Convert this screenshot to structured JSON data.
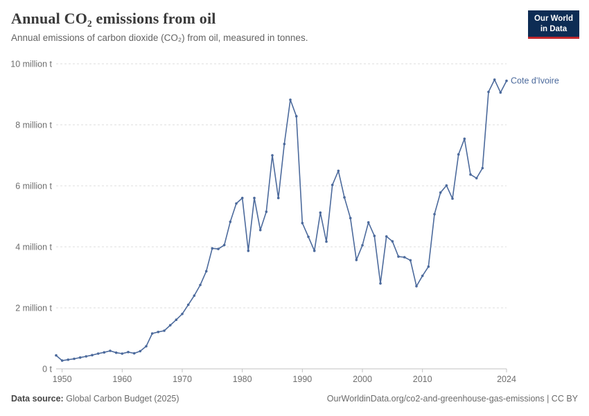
{
  "header": {
    "title": "Annual CO₂ emissions from oil",
    "subtitle": "Annual emissions of carbon dioxide (CO₂) from oil, measured in tonnes."
  },
  "logo": {
    "line1": "Our World",
    "line2": "in Data",
    "bg_color": "#0d2c54",
    "accent_color": "#c0272d"
  },
  "chart_data": {
    "type": "line",
    "title": "Annual CO₂ emissions from oil",
    "unit": "tonnes",
    "entity_label": "Cote d'Ivoire",
    "line_color": "#4C6A9C",
    "grid_color": "#dcdcdc",
    "axis_color": "#c2c2c2",
    "tick_text_color": "#6e6e6e",
    "grid": "horizontal-dashed",
    "legend_position": "end-of-line-label",
    "xlim": [
      1949,
      2024
    ],
    "ylim": [
      0,
      10
    ],
    "ylim_unit": "million tonnes",
    "yticks": [
      {
        "value": 0,
        "label": "0 t"
      },
      {
        "value": 2,
        "label": "2 million t"
      },
      {
        "value": 4,
        "label": "4 million t"
      },
      {
        "value": 6,
        "label": "6 million t"
      },
      {
        "value": 8,
        "label": "8 million t"
      },
      {
        "value": 10,
        "label": "10 million t"
      }
    ],
    "xticks": [
      {
        "year": 1950,
        "label": "1950"
      },
      {
        "year": 1960,
        "label": "1960"
      },
      {
        "year": 1970,
        "label": "1970"
      },
      {
        "year": 1980,
        "label": "1980"
      },
      {
        "year": 1990,
        "label": "1990"
      },
      {
        "year": 2000,
        "label": "2000"
      },
      {
        "year": 2010,
        "label": "2010"
      },
      {
        "year": 2024,
        "label": "2024"
      }
    ],
    "series": [
      {
        "name": "Cote d'Ivoire",
        "unit": "million tonnes",
        "points": [
          [
            1949,
            0.44
          ],
          [
            1950,
            0.27
          ],
          [
            1951,
            0.3
          ],
          [
            1952,
            0.33
          ],
          [
            1953,
            0.37
          ],
          [
            1954,
            0.41
          ],
          [
            1955,
            0.45
          ],
          [
            1956,
            0.5
          ],
          [
            1957,
            0.54
          ],
          [
            1958,
            0.59
          ],
          [
            1959,
            0.53
          ],
          [
            1960,
            0.5
          ],
          [
            1961,
            0.55
          ],
          [
            1962,
            0.51
          ],
          [
            1963,
            0.58
          ],
          [
            1964,
            0.74
          ],
          [
            1965,
            1.16
          ],
          [
            1966,
            1.21
          ],
          [
            1967,
            1.25
          ],
          [
            1968,
            1.43
          ],
          [
            1969,
            1.61
          ],
          [
            1970,
            1.8
          ],
          [
            1971,
            2.1
          ],
          [
            1972,
            2.4
          ],
          [
            1973,
            2.75
          ],
          [
            1974,
            3.2
          ],
          [
            1975,
            3.95
          ],
          [
            1976,
            3.93
          ],
          [
            1977,
            4.06
          ],
          [
            1978,
            4.82
          ],
          [
            1979,
            5.42
          ],
          [
            1980,
            5.6
          ],
          [
            1981,
            3.87
          ],
          [
            1982,
            5.6
          ],
          [
            1983,
            4.55
          ],
          [
            1984,
            5.15
          ],
          [
            1985,
            7.0
          ],
          [
            1986,
            5.6
          ],
          [
            1987,
            7.37
          ],
          [
            1988,
            8.82
          ],
          [
            1989,
            8.28
          ],
          [
            1990,
            4.78
          ],
          [
            1991,
            4.33
          ],
          [
            1992,
            3.87
          ],
          [
            1993,
            5.12
          ],
          [
            1994,
            4.17
          ],
          [
            1995,
            6.03
          ],
          [
            1996,
            6.49
          ],
          [
            1997,
            5.62
          ],
          [
            1998,
            4.94
          ],
          [
            1999,
            3.57
          ],
          [
            2000,
            4.05
          ],
          [
            2001,
            4.8
          ],
          [
            2002,
            4.36
          ],
          [
            2003,
            2.8
          ],
          [
            2004,
            4.34
          ],
          [
            2005,
            4.18
          ],
          [
            2006,
            3.68
          ],
          [
            2007,
            3.66
          ],
          [
            2008,
            3.56
          ],
          [
            2009,
            2.71
          ],
          [
            2010,
            3.05
          ],
          [
            2011,
            3.35
          ],
          [
            2012,
            5.07
          ],
          [
            2013,
            5.78
          ],
          [
            2014,
            6.01
          ],
          [
            2015,
            5.58
          ],
          [
            2016,
            7.03
          ],
          [
            2017,
            7.54
          ],
          [
            2018,
            6.37
          ],
          [
            2019,
            6.25
          ],
          [
            2020,
            6.58
          ],
          [
            2021,
            9.08
          ],
          [
            2022,
            9.48
          ],
          [
            2023,
            9.06
          ],
          [
            2024,
            9.44
          ]
        ]
      }
    ]
  },
  "footer": {
    "source_label": "Data source:",
    "source_value": "Global Carbon Budget (2025)",
    "credit": "OurWorldinData.org/co2-and-greenhouse-gas-emissions | CC BY"
  }
}
